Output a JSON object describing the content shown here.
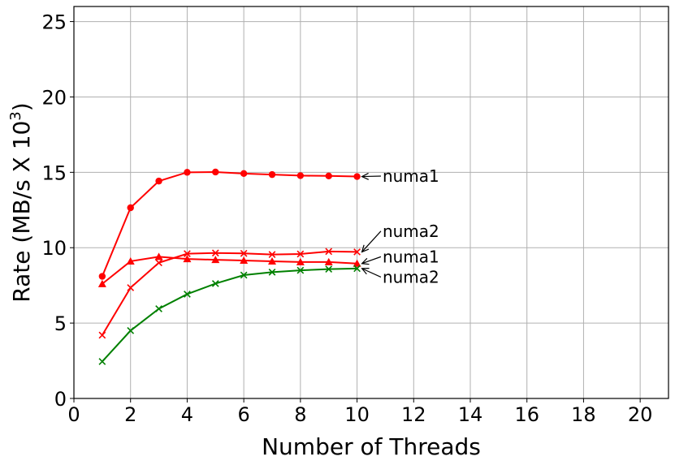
{
  "chart_data": {
    "type": "line",
    "title": "",
    "xlabel": "Number of Threads",
    "ylabel_main": "Rate (MB/s X 10",
    "ylabel_sup": "3",
    "ylabel_close": ")",
    "xlim": [
      0,
      21
    ],
    "ylim": [
      0,
      26
    ],
    "xticks": [
      0,
      2,
      4,
      6,
      8,
      10,
      12,
      14,
      16,
      18,
      20
    ],
    "yticks": [
      0,
      5,
      10,
      15,
      20,
      25
    ],
    "grid": true,
    "x": [
      1,
      2,
      3,
      4,
      5,
      6,
      7,
      8,
      9,
      10
    ],
    "series": [
      {
        "color": "#ff0000",
        "marker": "circle",
        "values": [
          8.1,
          12.65,
          14.42,
          15.0,
          15.02,
          14.92,
          14.85,
          14.78,
          14.76,
          14.72
        ]
      },
      {
        "color": "#ff0000",
        "marker": "x",
        "values": [
          4.2,
          7.35,
          9.0,
          9.6,
          9.65,
          9.62,
          9.55,
          9.58,
          9.75,
          9.72
        ]
      },
      {
        "color": "#ff0000",
        "marker": "triangle",
        "values": [
          7.6,
          9.1,
          9.4,
          9.25,
          9.2,
          9.15,
          9.1,
          9.05,
          9.05,
          8.95
        ]
      },
      {
        "color": "#008000",
        "marker": "x",
        "values": [
          2.45,
          4.5,
          5.95,
          6.92,
          7.62,
          8.18,
          8.38,
          8.5,
          8.58,
          8.62
        ]
      }
    ],
    "annotations": [
      {
        "text": "numa1",
        "xy": [
          10,
          14.72
        ],
        "xytext": [
          10.9,
          14.75
        ]
      },
      {
        "text": "numa2",
        "xy": [
          10,
          9.72
        ],
        "xytext": [
          10.9,
          11.1
        ]
      },
      {
        "text": "numa1",
        "xy": [
          10,
          8.95
        ],
        "xytext": [
          10.9,
          9.4
        ]
      },
      {
        "text": "numa2",
        "xy": [
          10,
          8.62
        ],
        "xytext": [
          10.9,
          8.05
        ]
      }
    ]
  }
}
